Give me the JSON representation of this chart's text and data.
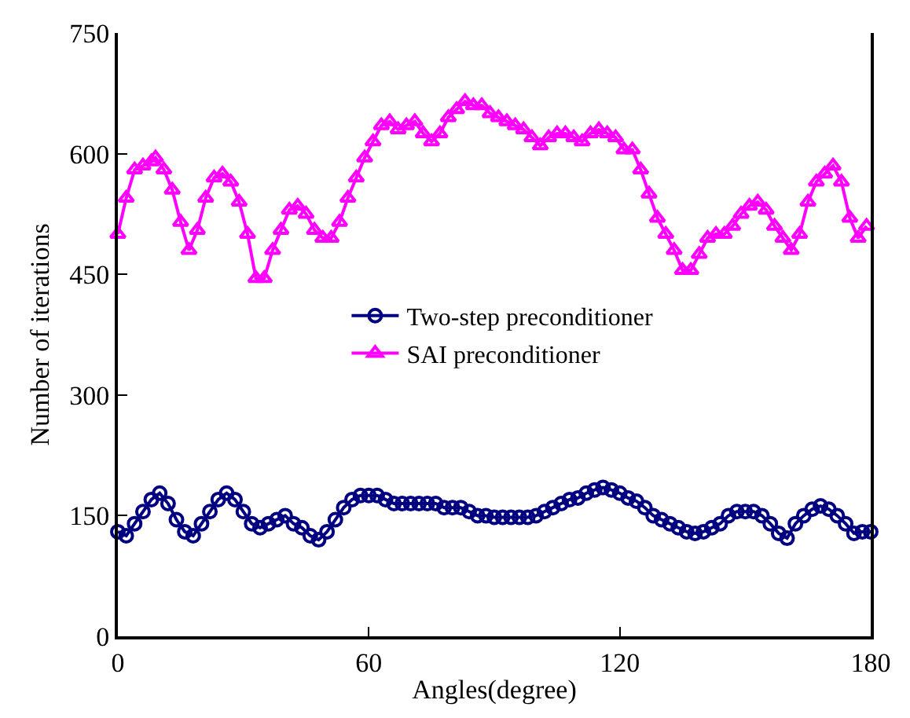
{
  "chart_data": {
    "type": "line",
    "xlabel": "Angles(degree)",
    "ylabel": "Number of iterations",
    "xlim": [
      0,
      180
    ],
    "xticks": [
      0,
      60,
      120,
      180
    ],
    "ylim": [
      0,
      750
    ],
    "yticks": [
      0,
      150,
      300,
      450,
      600,
      750
    ],
    "legend": "center",
    "line_style": "solid",
    "series": [
      {
        "name": "Two-step preconditioner",
        "color": "#000080",
        "marker": "circle",
        "x": [
          0,
          2,
          4,
          6,
          8,
          10,
          12,
          14,
          16,
          18,
          20,
          22,
          24,
          26,
          28,
          30,
          32,
          34,
          36,
          38,
          40,
          42,
          44,
          46,
          48,
          50,
          52,
          54,
          56,
          58,
          60,
          62,
          64,
          66,
          68,
          70,
          72,
          74,
          76,
          78,
          80,
          82,
          84,
          86,
          88,
          90,
          92,
          94,
          96,
          98,
          100,
          102,
          104,
          106,
          108,
          110,
          112,
          114,
          116,
          118,
          120,
          122,
          124,
          126,
          128,
          130,
          132,
          134,
          136,
          138,
          140,
          142,
          144,
          146,
          148,
          150,
          152,
          154,
          156,
          158,
          160,
          162,
          164,
          166,
          168,
          170,
          172,
          174,
          176,
          178,
          180
        ],
        "values": [
          130,
          125,
          140,
          155,
          170,
          178,
          165,
          145,
          130,
          125,
          140,
          155,
          170,
          178,
          170,
          155,
          140,
          135,
          140,
          145,
          150,
          140,
          135,
          125,
          120,
          130,
          145,
          160,
          170,
          175,
          175,
          175,
          170,
          165,
          165,
          165,
          165,
          165,
          165,
          160,
          160,
          160,
          155,
          150,
          150,
          148,
          148,
          148,
          148,
          148,
          150,
          155,
          160,
          165,
          170,
          172,
          178,
          182,
          185,
          182,
          178,
          172,
          168,
          160,
          150,
          145,
          140,
          135,
          130,
          128,
          130,
          135,
          140,
          150,
          155,
          155,
          155,
          150,
          140,
          128,
          122,
          140,
          150,
          158,
          162,
          158,
          150,
          140,
          128,
          130,
          130
        ]
      },
      {
        "name": "SAI preconditioner",
        "color": "#ff00ff",
        "marker": "triangle",
        "x": [
          0,
          2,
          4,
          6,
          8,
          9,
          11,
          13,
          15,
          17,
          19,
          21,
          23,
          25,
          27,
          29,
          31,
          33,
          35,
          37,
          39,
          41,
          43,
          45,
          47,
          49,
          51,
          53,
          55,
          57,
          59,
          61,
          63,
          65,
          67,
          69,
          71,
          73,
          75,
          77,
          79,
          81,
          83,
          85,
          87,
          89,
          91,
          93,
          95,
          97,
          99,
          101,
          103,
          105,
          107,
          109,
          111,
          113,
          115,
          117,
          119,
          121,
          123,
          125,
          127,
          129,
          131,
          133,
          135,
          137,
          139,
          141,
          143,
          145,
          147,
          149,
          151,
          153,
          155,
          157,
          159,
          161,
          163,
          165,
          167,
          169,
          171,
          173,
          175,
          177,
          179
        ],
        "values": [
          500,
          545,
          580,
          585,
          590,
          595,
          580,
          555,
          515,
          480,
          505,
          545,
          570,
          575,
          565,
          540,
          500,
          445,
          445,
          480,
          505,
          530,
          535,
          525,
          505,
          495,
          495,
          515,
          545,
          570,
          595,
          615,
          635,
          640,
          630,
          635,
          640,
          625,
          615,
          625,
          645,
          655,
          665,
          660,
          660,
          650,
          645,
          640,
          635,
          630,
          620,
          610,
          620,
          625,
          625,
          620,
          615,
          625,
          630,
          625,
          620,
          605,
          605,
          580,
          550,
          520,
          500,
          480,
          455,
          455,
          475,
          495,
          500,
          500,
          510,
          525,
          535,
          540,
          530,
          510,
          495,
          480,
          500,
          540,
          565,
          575,
          585,
          565,
          520,
          495,
          510
        ]
      }
    ]
  }
}
